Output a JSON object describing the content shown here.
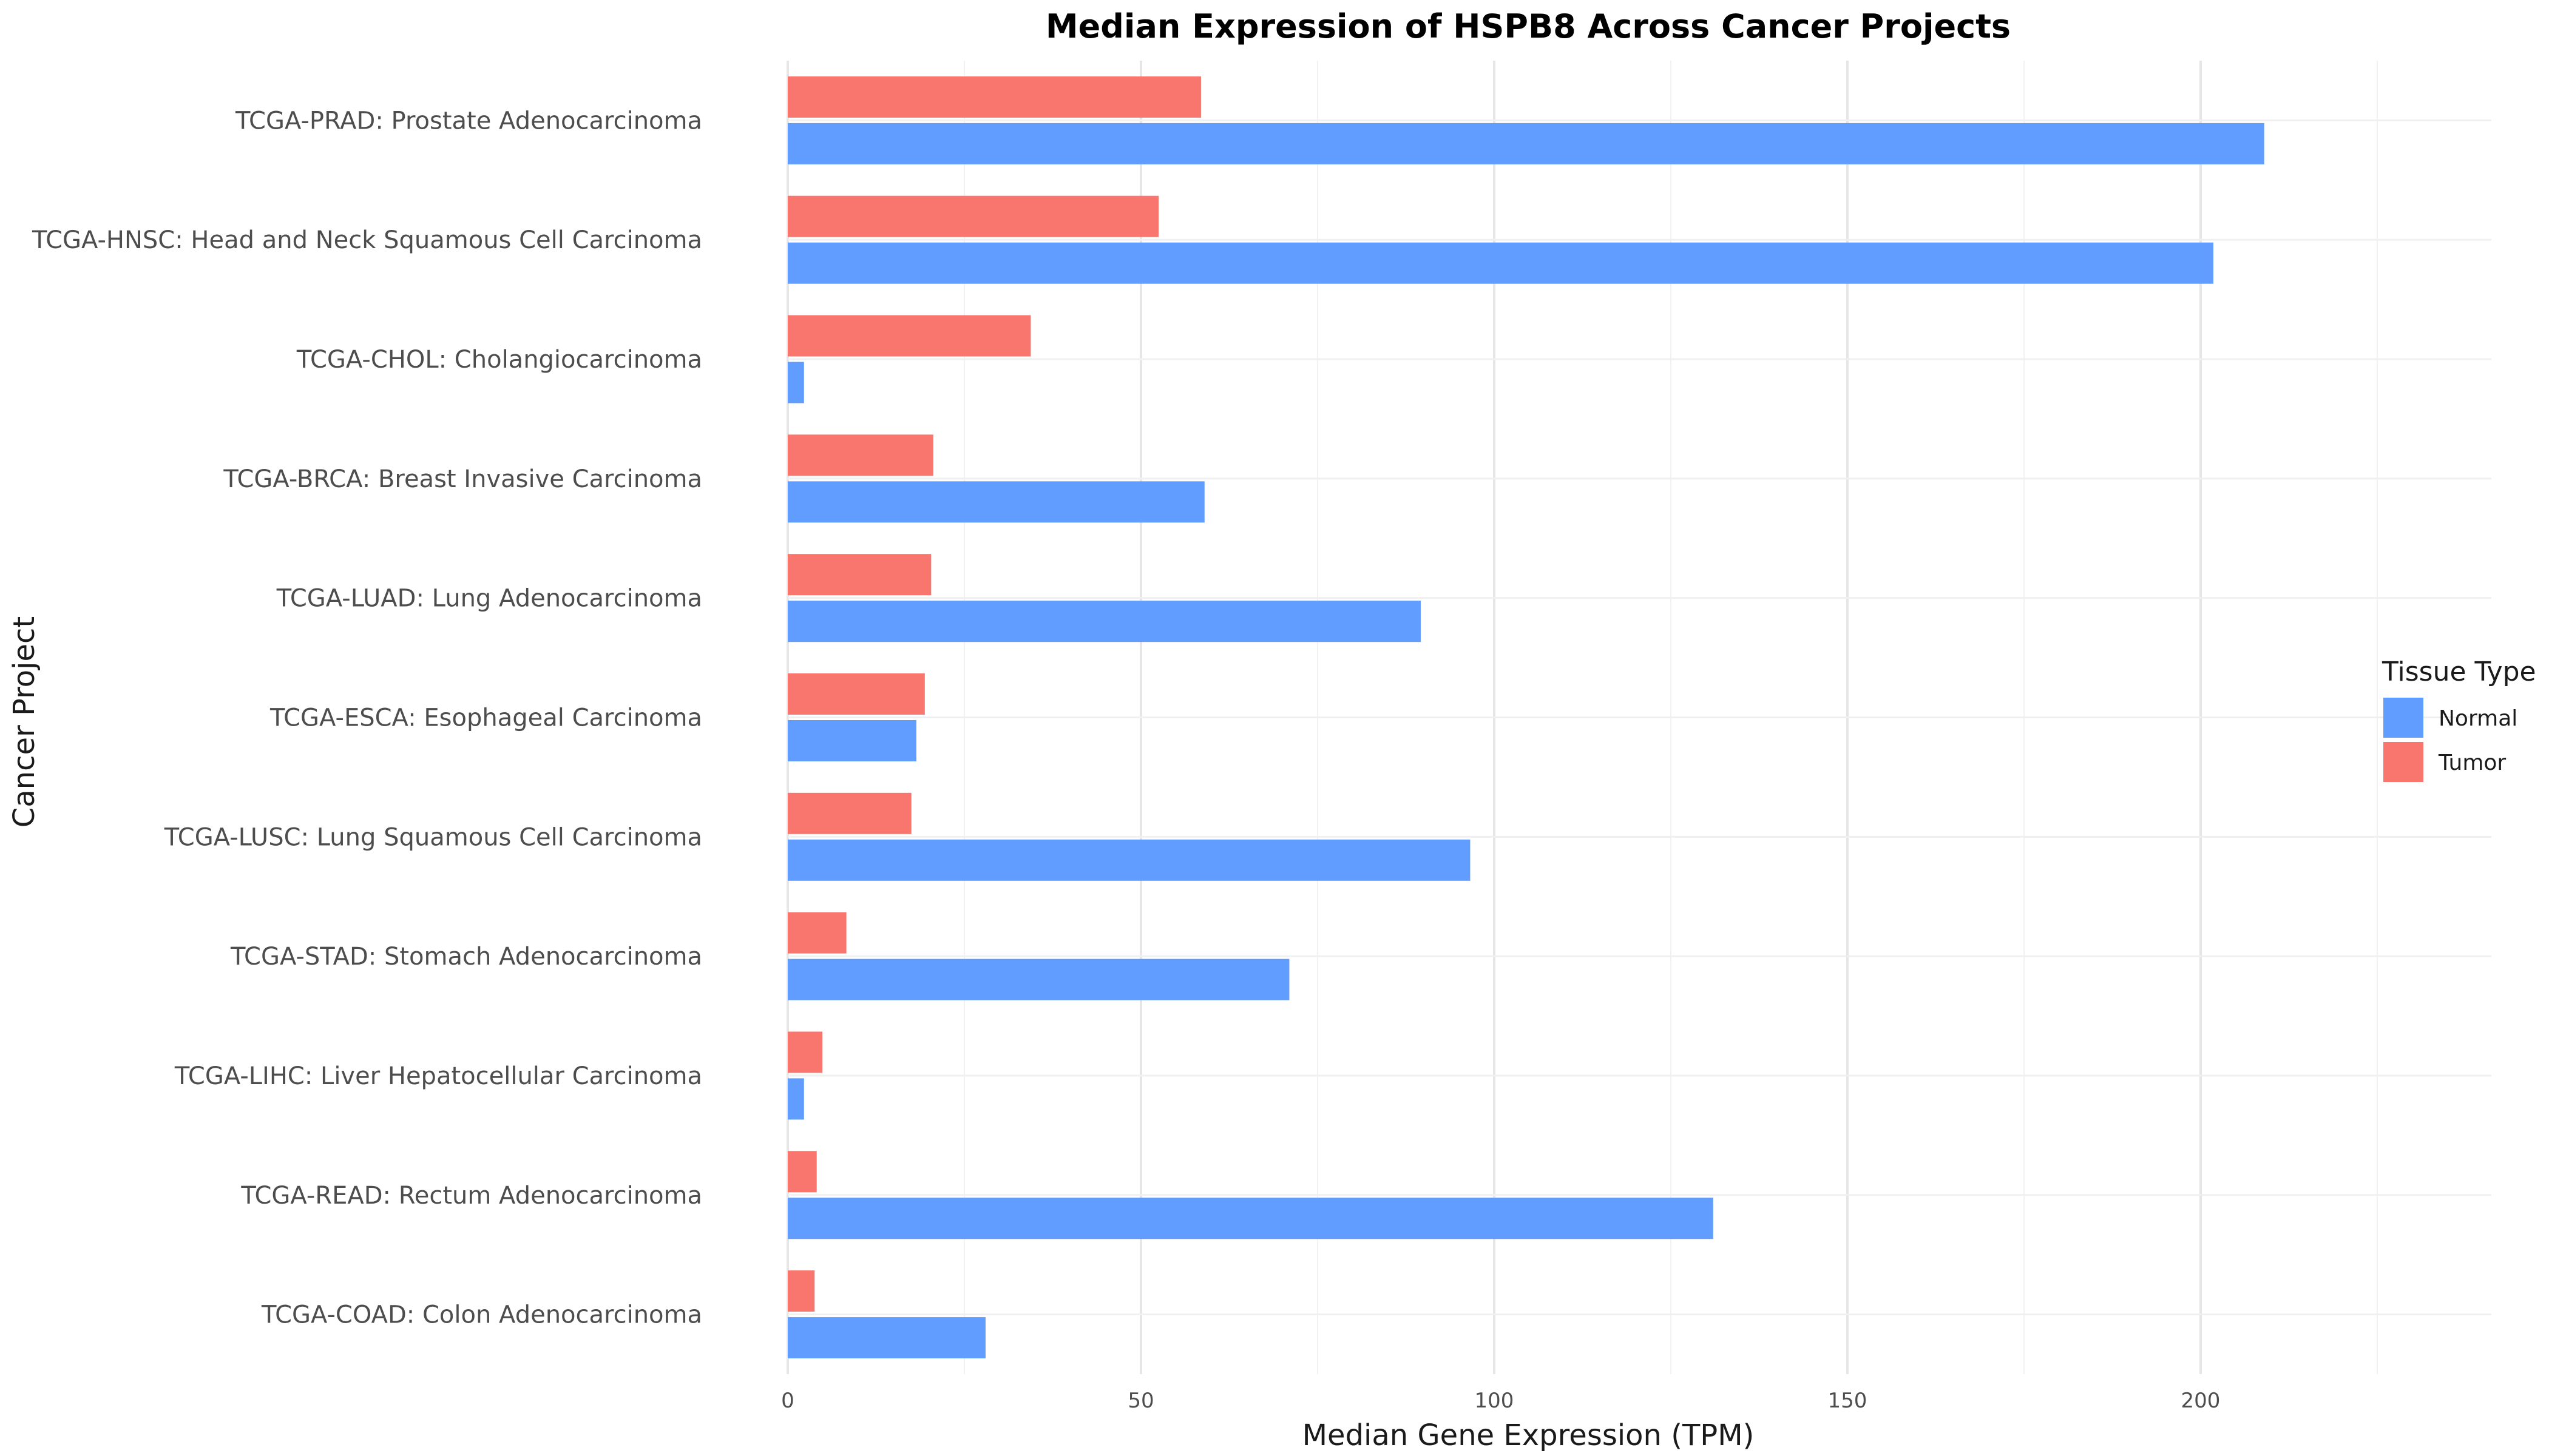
{
  "chart_data": {
    "type": "bar",
    "orientation": "horizontal",
    "title": "Median Expression of HSPB8 Across Cancer Projects",
    "xlabel": "Median Gene Expression (TPM)",
    "ylabel": "Cancer Project",
    "xlim": [
      0,
      242
    ],
    "xticks": [
      0,
      50,
      100,
      150,
      200
    ],
    "grid": true,
    "legend_title": "Tissue Type",
    "legend_position": "right",
    "categories": [
      "TCGA-PRAD: Prostate Adenocarcinoma",
      "TCGA-HNSC: Head and Neck Squamous Cell Carcinoma",
      "TCGA-CHOL: Cholangiocarcinoma",
      "TCGA-BRCA: Breast Invasive Carcinoma",
      "TCGA-LUAD: Lung Adenocarcinoma",
      "TCGA-ESCA: Esophageal Carcinoma",
      "TCGA-LUSC: Lung Squamous Cell Carcinoma",
      "TCGA-STAD: Stomach Adenocarcinoma",
      "TCGA-LIHC: Liver Hepatocellular Carcinoma",
      "TCGA-READ: Rectum Adenocarcinoma",
      "TCGA-COAD: Colon Adenocarcinoma"
    ],
    "series": [
      {
        "name": "Normal",
        "color": "#619CFF",
        "values": [
          209.0,
          201.8,
          2.3,
          59.0,
          89.6,
          18.2,
          96.6,
          71.0,
          2.3,
          131.0,
          28.0
        ]
      },
      {
        "name": "Tumor",
        "color": "#F8766D",
        "values": [
          58.5,
          52.5,
          34.4,
          20.6,
          20.3,
          19.4,
          17.5,
          8.3,
          4.9,
          4.1,
          3.8
        ]
      }
    ]
  }
}
